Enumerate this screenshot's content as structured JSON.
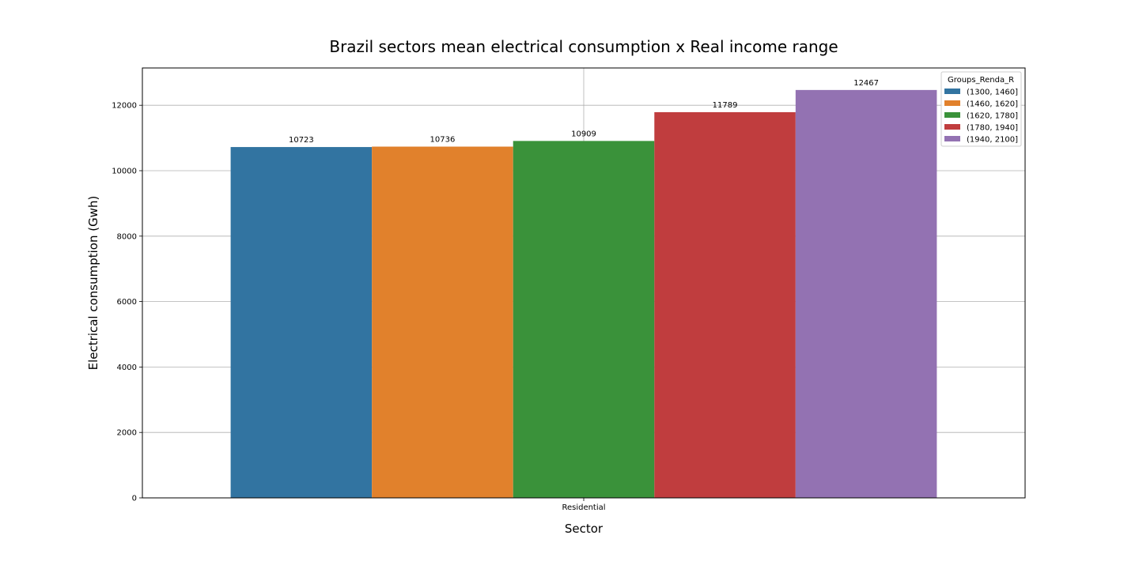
{
  "chart_data": {
    "type": "bar",
    "title": "Brazil sectors mean electrical consumption x Real income range",
    "xlabel": "Sector",
    "ylabel": "Electrical consumption (Gwh)",
    "categories": [
      "Residential"
    ],
    "ylim": [
      0,
      13140
    ],
    "yticks": [
      0,
      2000,
      4000,
      6000,
      8000,
      10000,
      12000
    ],
    "grid": true,
    "legend": {
      "title": "Groups_Renda_R",
      "placement": "top-right"
    },
    "series": [
      {
        "name": "(1300, 1460]",
        "values": [
          10723
        ],
        "label": "10723",
        "color": "#3274a1"
      },
      {
        "name": "(1460, 1620]",
        "values": [
          10736
        ],
        "label": "10736",
        "color": "#e1812c"
      },
      {
        "name": "(1620, 1780]",
        "values": [
          10909
        ],
        "label": "10909",
        "color": "#3a923a"
      },
      {
        "name": "(1780, 1940]",
        "values": [
          11789
        ],
        "label": "11789",
        "color": "#c03d3e"
      },
      {
        "name": "(1940, 2100]",
        "values": [
          12467
        ],
        "label": "12467",
        "color": "#9372b2"
      }
    ]
  }
}
